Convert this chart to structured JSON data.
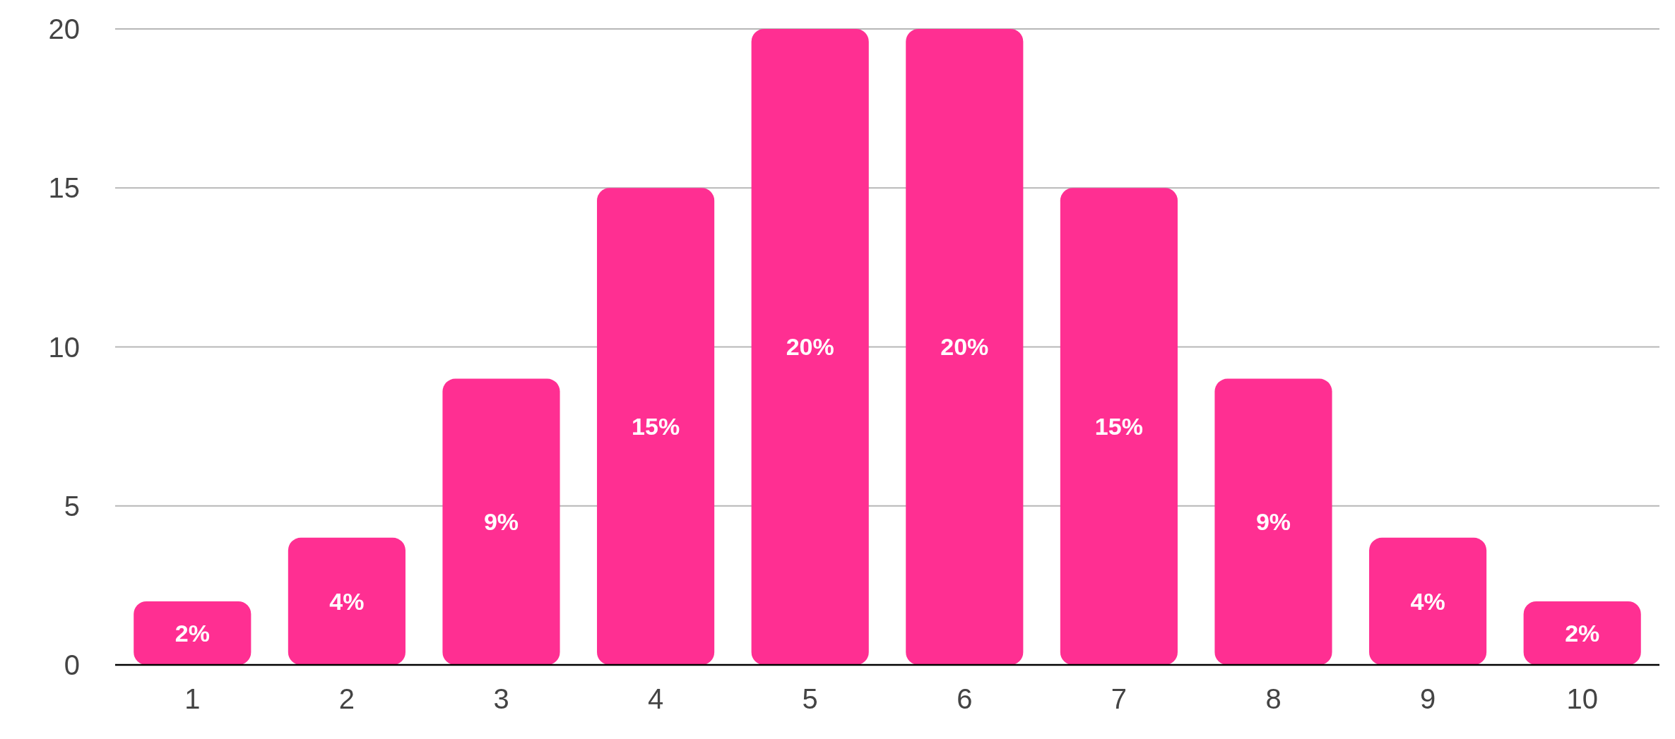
{
  "chart_data": {
    "type": "bar",
    "categories": [
      "1",
      "2",
      "3",
      "4",
      "5",
      "6",
      "7",
      "8",
      "9",
      "10"
    ],
    "values": [
      2,
      4,
      9,
      15,
      20,
      20,
      15,
      9,
      4,
      2
    ],
    "value_labels": [
      "2%",
      "4%",
      "9%",
      "15%",
      "20%",
      "20%",
      "15%",
      "9%",
      "4%",
      "2%"
    ],
    "color": "#ff2f92",
    "ylim": [
      0,
      20
    ],
    "yticks": [
      0,
      5,
      10,
      15,
      20
    ],
    "grid": "y"
  }
}
